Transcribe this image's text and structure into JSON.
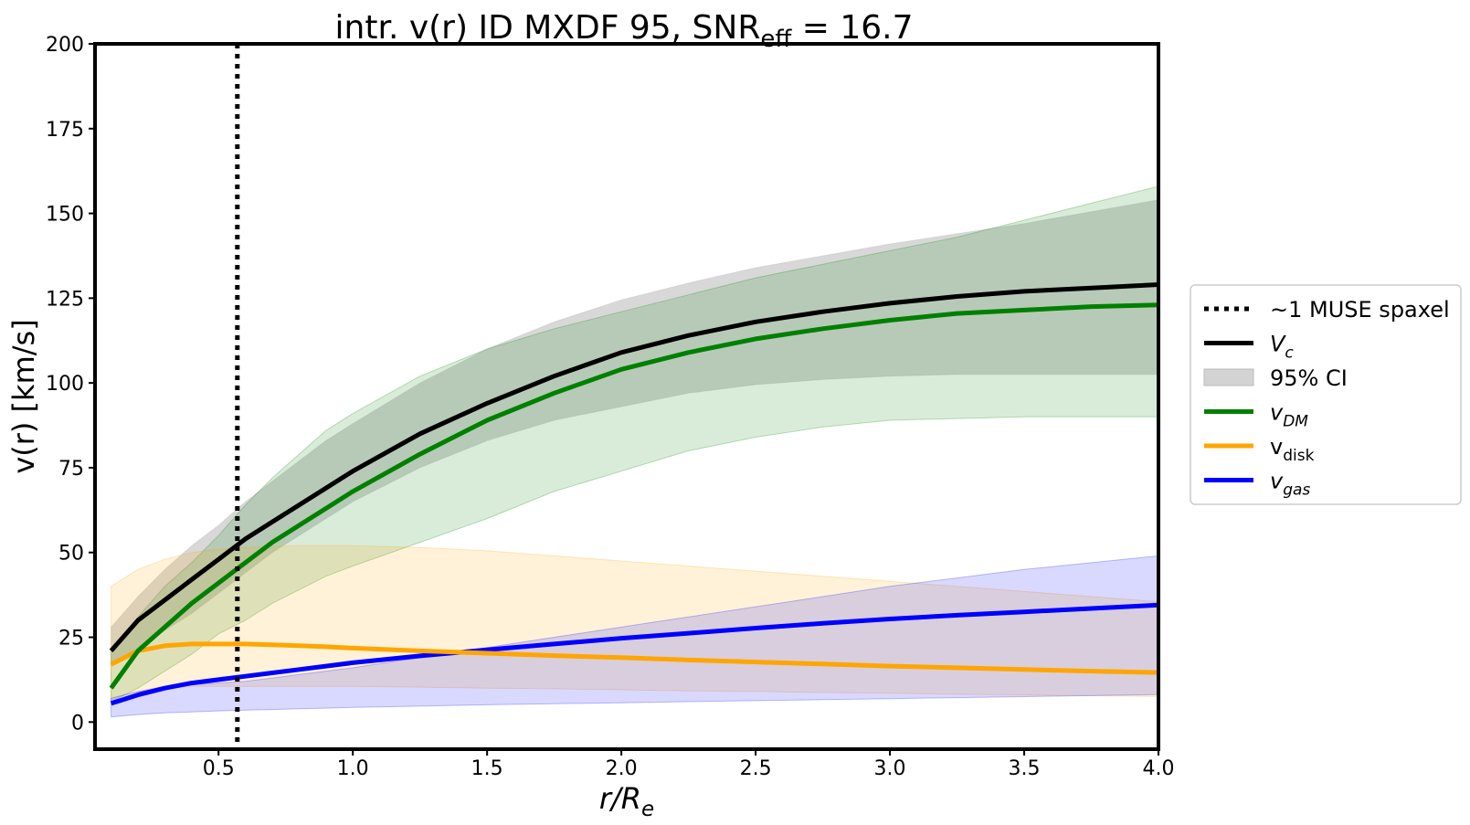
{
  "chart_data": {
    "type": "line",
    "title": {
      "main": "intr. v(r) ID MXDF 95, SNR",
      "subscript": "eff",
      "suffix": " = 16.7"
    },
    "xlabel": {
      "main": "r/R",
      "subscript": "e"
    },
    "ylabel": "v(r) [km/s]",
    "xlim": [
      0.04,
      4.0
    ],
    "ylim": [
      -8,
      200
    ],
    "xticks": [
      "0.5",
      "1.0",
      "1.5",
      "2.0",
      "2.5",
      "3.0",
      "3.5",
      "4.0"
    ],
    "yticks": [
      "0",
      "25",
      "50",
      "75",
      "100",
      "125",
      "150",
      "175",
      "200"
    ],
    "grid": false,
    "legend_position": "right-outside",
    "vline": {
      "x": 0.57,
      "style": "dotted",
      "color": "#000000",
      "label": "~1 MUSE spaxel"
    },
    "x": [
      0.1,
      0.2,
      0.3,
      0.4,
      0.5,
      0.6,
      0.7,
      0.8,
      0.9,
      1.0,
      1.25,
      1.5,
      1.75,
      2.0,
      2.25,
      2.5,
      2.75,
      3.0,
      3.25,
      3.5,
      3.75,
      4.0
    ],
    "series": [
      {
        "name": "V",
        "name_sub": "c",
        "italic": true,
        "color": "#000000",
        "values": [
          21,
          30,
          36,
          42,
          48,
          54,
          59,
          64,
          69,
          74,
          85,
          94,
          102,
          109,
          114,
          118,
          121,
          123.5,
          125.5,
          127,
          128,
          129
        ]
      },
      {
        "name": "v",
        "name_sub": "DM",
        "italic": true,
        "color": "#008000",
        "values": [
          10,
          21,
          28,
          35,
          41,
          47,
          53,
          58,
          63,
          68,
          79,
          89,
          97,
          104,
          109,
          113,
          116,
          118.5,
          120.5,
          121.5,
          122.5,
          123
        ]
      },
      {
        "name": "v",
        "name_sub": "disk",
        "italic": false,
        "color": "#FFA500",
        "values": [
          17,
          21,
          22.5,
          23,
          23,
          23,
          22.8,
          22.5,
          22.2,
          21.8,
          21,
          20.3,
          19.6,
          19,
          18.3,
          17.7,
          17.1,
          16.5,
          16,
          15.5,
          15,
          14.6
        ]
      },
      {
        "name": "v",
        "name_sub": "gas",
        "italic": true,
        "color": "#0000FF",
        "values": [
          5.5,
          8,
          10,
          11.5,
          12.5,
          13.5,
          14.5,
          15.5,
          16.5,
          17.5,
          19.5,
          21.3,
          23,
          24.7,
          26.2,
          27.7,
          29.1,
          30.4,
          31.5,
          32.5,
          33.5,
          34.5
        ]
      }
    ],
    "bands": [
      {
        "name": "95% CI",
        "color": "#a9a9a9",
        "opacity": 0.45,
        "lower": [
          17,
          22,
          27,
          32,
          38,
          44,
          50,
          55,
          60,
          65,
          75,
          83,
          89,
          93,
          97,
          99.5,
          101,
          102,
          102.5,
          102.5,
          102.5,
          102.5
        ],
        "upper": [
          28,
          37,
          45,
          52,
          58,
          65,
          71,
          77,
          83,
          88,
          100,
          110,
          118,
          124.5,
          129.5,
          134,
          137.5,
          141,
          144,
          147,
          150.5,
          154
        ]
      },
      {
        "name": "v_DM band",
        "color": "#008000",
        "opacity": 0.15,
        "lower": [
          6,
          10,
          15,
          20,
          26,
          30,
          35,
          39,
          43,
          46,
          53,
          60,
          68,
          74,
          80,
          84,
          87,
          89,
          89.5,
          90,
          90,
          90
        ],
        "upper": [
          21,
          31,
          40,
          47,
          55,
          64,
          72,
          79,
          86,
          91,
          102,
          110,
          116,
          121,
          126,
          131,
          135,
          139,
          143,
          148,
          153,
          158
        ]
      },
      {
        "name": "v_disk band",
        "color": "#FFA500",
        "opacity": 0.15,
        "lower": [
          7,
          9,
          10,
          10.5,
          10.5,
          10.5,
          10.5,
          10.5,
          10.5,
          10.5,
          10.3,
          10,
          9.8,
          9.5,
          9.2,
          9,
          8.7,
          8.5,
          8.2,
          8,
          7.8,
          7.5
        ],
        "upper": [
          40,
          45,
          48,
          50,
          51,
          51.5,
          51.8,
          52,
          52,
          52,
          51.5,
          50.5,
          49,
          47.5,
          46,
          44.5,
          43,
          41.5,
          40,
          38.5,
          37,
          35.5
        ]
      },
      {
        "name": "v_gas band",
        "color": "#0000FF",
        "opacity": 0.15,
        "lower": [
          1.5,
          2.2,
          2.7,
          3,
          3.3,
          3.5,
          3.7,
          3.9,
          4.1,
          4.3,
          4.7,
          5.1,
          5.4,
          5.7,
          6,
          6.3,
          6.6,
          6.9,
          7.2,
          7.5,
          7.8,
          8.1
        ],
        "upper": [
          7,
          9,
          10.5,
          11,
          11.5,
          12,
          13,
          14,
          15,
          16,
          19,
          22,
          25,
          28,
          31,
          34,
          37,
          40,
          42.5,
          45,
          47,
          49
        ]
      }
    ],
    "legend": [
      {
        "kind": "dotted",
        "color": "#000000",
        "label": "~1 MUSE spaxel",
        "sub": "",
        "italic": false
      },
      {
        "kind": "line",
        "color": "#000000",
        "label": "V",
        "sub": "c",
        "italic": true
      },
      {
        "kind": "patch",
        "color": "#d3d3d3",
        "label": "95% CI",
        "sub": "",
        "italic": false
      },
      {
        "kind": "line",
        "color": "#008000",
        "label": "v",
        "sub": "DM",
        "italic": true
      },
      {
        "kind": "line",
        "color": "#FFA500",
        "label": "v",
        "sub": "disk",
        "italic": false
      },
      {
        "kind": "line",
        "color": "#0000FF",
        "label": "v",
        "sub": "gas",
        "italic": true
      }
    ]
  }
}
